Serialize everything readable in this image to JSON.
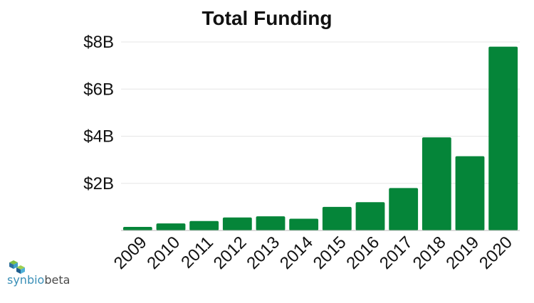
{
  "chart_data": {
    "type": "bar",
    "title": "Total Funding",
    "xlabel": "",
    "ylabel": "",
    "categories": [
      "2009",
      "2010",
      "2011",
      "2012",
      "2013",
      "2014",
      "2015",
      "2016",
      "2017",
      "2018",
      "2019",
      "2020"
    ],
    "values": [
      0.15,
      0.3,
      0.4,
      0.55,
      0.6,
      0.5,
      1.0,
      1.2,
      1.8,
      3.95,
      3.15,
      7.8
    ],
    "value_unit": "billion USD",
    "ylim": [
      0,
      8
    ],
    "yticks": [
      {
        "value": 2,
        "label": "$2B"
      },
      {
        "value": 4,
        "label": "$4B"
      },
      {
        "value": 6,
        "label": "$6B"
      },
      {
        "value": 8,
        "label": "$8B"
      }
    ],
    "grid": true,
    "legend": "none",
    "bar_color": "#058539"
  },
  "logo": {
    "part1": "synbio",
    "part2": "beta"
  }
}
